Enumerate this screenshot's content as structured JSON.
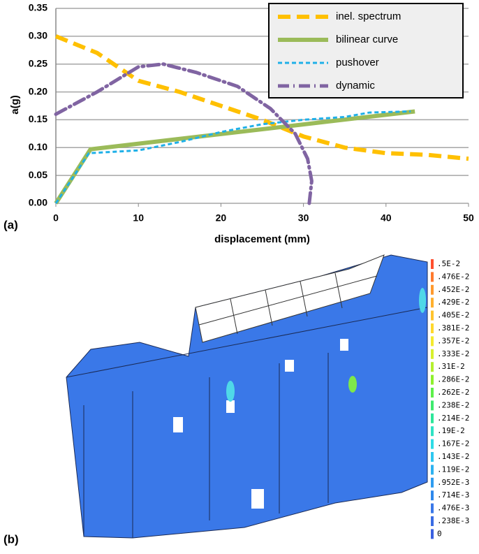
{
  "chart_data": {
    "type": "line",
    "xlabel": "displacement (mm)",
    "ylabel": "a(g)",
    "xlim": [
      0,
      50
    ],
    "xticks": [
      0,
      10,
      20,
      30,
      40,
      50
    ],
    "ylim": [
      0,
      0.35
    ],
    "yticks": [
      {
        "value": 0,
        "label": "0.00"
      },
      {
        "value": 0.05,
        "label": "0.05"
      },
      {
        "value": 0.1,
        "label": "0.10"
      },
      {
        "value": 0.15,
        "label": "0.15"
      },
      {
        "value": 0.2,
        "label": "0.20"
      },
      {
        "value": 0.25,
        "label": "0.25"
      },
      {
        "value": 0.3,
        "label": "0.30"
      },
      {
        "value": 0.35,
        "label": "0.35"
      }
    ],
    "grid": true,
    "legend": "upper right",
    "series": [
      {
        "name": "inel. spectrum",
        "color": "#ffc000",
        "line_style": "dashed",
        "width": 6,
        "x": [
          0,
          5,
          10,
          15,
          20,
          25,
          30,
          35,
          40,
          45,
          50
        ],
        "values": [
          0.3,
          0.27,
          0.22,
          0.2,
          0.175,
          0.15,
          0.12,
          0.1,
          0.09,
          0.087,
          0.08
        ]
      },
      {
        "name": "bilinear curve",
        "color": "#9bbb59",
        "line_style": "solid",
        "width": 6,
        "x": [
          0,
          4.2,
          43.5
        ],
        "values": [
          0,
          0.097,
          0.165
        ]
      },
      {
        "name": "pushover",
        "color": "#1fb0e8",
        "line_style": "dotted",
        "width": 3,
        "x": [
          0,
          4,
          10,
          15,
          20,
          25,
          30,
          35,
          38,
          43
        ],
        "values": [
          0,
          0.09,
          0.095,
          0.11,
          0.128,
          0.142,
          0.15,
          0.155,
          0.163,
          0.165
        ]
      },
      {
        "name": "dynamic",
        "color": "#8064a2",
        "line_style": "dashdot",
        "width": 5,
        "x": [
          0,
          5,
          10,
          13,
          17,
          22,
          26,
          29,
          30.5,
          31,
          30.7
        ],
        "values": [
          0.16,
          0.2,
          0.245,
          0.25,
          0.235,
          0.21,
          0.17,
          0.125,
          0.08,
          0.04,
          0
        ]
      }
    ]
  },
  "panels": {
    "a": "(a)",
    "b": "(b)"
  },
  "colorbar": {
    "labels": [
      ".5E-2",
      ".476E-2",
      ".452E-2",
      ".429E-2",
      ".405E-2",
      ".381E-2",
      ".357E-2",
      ".333E-2",
      ".31E-2",
      ".286E-2",
      ".262E-2",
      ".238E-2",
      ".214E-2",
      ".19E-2",
      ".167E-2",
      ".143E-2",
      ".119E-2",
      ".952E-3",
      ".714E-3",
      ".476E-3",
      ".238E-3",
      "0"
    ],
    "colors": [
      "#ff4f2e",
      "#ff7a2e",
      "#ff9a2e",
      "#ffb02e",
      "#ffc42e",
      "#ffd82e",
      "#f4ea2e",
      "#d8f02e",
      "#b4f02e",
      "#8ef02e",
      "#5ef04a",
      "#3eea6e",
      "#2ee69a",
      "#2ee2c4",
      "#2edce6",
      "#2ec8f0",
      "#2eb2f0",
      "#2e9cf0",
      "#2e88ec",
      "#3a78e8",
      "#3a6ce4",
      "#3a60e0"
    ]
  }
}
